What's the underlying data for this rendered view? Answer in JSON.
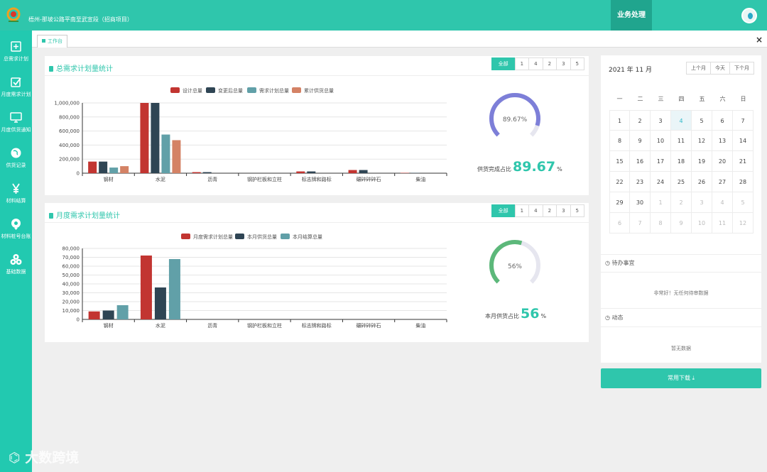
{
  "header": {
    "project": "梧州-那坡公路平南至武宣段（招商项目）",
    "business": "业务处理"
  },
  "sidebar": {
    "items": [
      {
        "label": "总需求计划",
        "icon": "plus-square-icon"
      },
      {
        "label": "月度需求计划",
        "icon": "checkbox-icon"
      },
      {
        "label": "月度供货通知",
        "icon": "monitor-icon"
      },
      {
        "label": "供货记录",
        "icon": "globe-icon"
      },
      {
        "label": "材料结算",
        "icon": "yen-icon"
      },
      {
        "label": "材料桩号台账",
        "icon": "map-pin-icon"
      },
      {
        "label": "基础数据",
        "icon": "cubes-icon"
      }
    ]
  },
  "tabs": {
    "workbench": "工作台",
    "close": "×"
  },
  "panel1": {
    "title": "总需求计划量统计",
    "filters": [
      "全部",
      "1",
      "4",
      "2",
      "3",
      "5"
    ],
    "gauge": {
      "percent": 89.67,
      "center": "89.67%",
      "label": "供货完成占比",
      "value": "89.67",
      "unit": "%"
    }
  },
  "panel2": {
    "title": "月度需求计划量统计",
    "filters": [
      "全部",
      "1",
      "4",
      "2",
      "3",
      "5"
    ],
    "gauge": {
      "percent": 56,
      "center": "56%",
      "label": "本月供货占比",
      "value": "56",
      "unit": "%"
    }
  },
  "colors": {
    "accent": "#2fc6ac",
    "red": "#c23531",
    "navy": "#2f4554",
    "teal": "#61a0a8",
    "orange": "#d48265",
    "gauge1": "#7d7fd8",
    "gauge2": "#5cb87a"
  },
  "chart_data": [
    {
      "type": "bar",
      "title": "总需求计划量统计",
      "categories": [
        "钢材",
        "水泥",
        "沥青",
        "钢护栏板和立柱",
        "标志牌和路标",
        "碾碎碎碎石",
        "柴油"
      ],
      "series": [
        {
          "name": "设计总量",
          "color": "#c23531",
          "values": [
            165000,
            1000000,
            15000,
            0,
            25000,
            45000,
            5000
          ]
        },
        {
          "name": "变更后总量",
          "color": "#2f4554",
          "values": [
            165000,
            1000000,
            15000,
            0,
            25000,
            45000,
            5000
          ]
        },
        {
          "name": "需求计划总量",
          "color": "#61a0a8",
          "values": [
            80000,
            550000,
            0,
            0,
            0,
            0,
            0
          ]
        },
        {
          "name": "累计供货总量",
          "color": "#d48265",
          "values": [
            100000,
            470000,
            0,
            0,
            0,
            0,
            0
          ]
        }
      ],
      "yticks": [
        "0",
        "200,000",
        "400,000",
        "600,000",
        "800,000",
        "1,000,000"
      ],
      "ylim": [
        0,
        1000000
      ]
    },
    {
      "type": "bar",
      "title": "月度需求计划量统计",
      "categories": [
        "钢材",
        "水泥",
        "沥青",
        "钢护栏板和立柱",
        "标志牌和路标",
        "碾碎碎碎石",
        "柴油"
      ],
      "series": [
        {
          "name": "月度需求计划总量",
          "color": "#c23531",
          "values": [
            9000,
            72000,
            0,
            0,
            0,
            0,
            0
          ]
        },
        {
          "name": "本月供货总量",
          "color": "#2f4554",
          "values": [
            10000,
            36000,
            0,
            0,
            0,
            0,
            0
          ]
        },
        {
          "name": "本月结算总量",
          "color": "#61a0a8",
          "values": [
            16000,
            68000,
            0,
            0,
            0,
            0,
            0
          ]
        }
      ],
      "yticks": [
        "0",
        "10,000",
        "20,000",
        "30,000",
        "40,000",
        "50,000",
        "60,000",
        "70,000",
        "80,000"
      ],
      "ylim": [
        0,
        80000
      ]
    }
  ],
  "calendar": {
    "title": "2021 年 11 月",
    "buttons": [
      "上个月",
      "今天",
      "下个月"
    ],
    "weekdays": [
      "一",
      "二",
      "三",
      "四",
      "五",
      "六",
      "日"
    ],
    "rows": [
      [
        {
          "d": "1"
        },
        {
          "d": "2"
        },
        {
          "d": "3"
        },
        {
          "d": "4",
          "t": 1
        },
        {
          "d": "5"
        },
        {
          "d": "6"
        },
        {
          "d": "7"
        }
      ],
      [
        {
          "d": "8"
        },
        {
          "d": "9"
        },
        {
          "d": "10"
        },
        {
          "d": "11"
        },
        {
          "d": "12"
        },
        {
          "d": "13"
        },
        {
          "d": "14"
        }
      ],
      [
        {
          "d": "15"
        },
        {
          "d": "16"
        },
        {
          "d": "17"
        },
        {
          "d": "18"
        },
        {
          "d": "19"
        },
        {
          "d": "20"
        },
        {
          "d": "21"
        }
      ],
      [
        {
          "d": "22"
        },
        {
          "d": "23"
        },
        {
          "d": "24"
        },
        {
          "d": "25"
        },
        {
          "d": "26"
        },
        {
          "d": "27"
        },
        {
          "d": "28"
        }
      ],
      [
        {
          "d": "29"
        },
        {
          "d": "30"
        },
        {
          "d": "1",
          "m": 1
        },
        {
          "d": "2",
          "m": 1
        },
        {
          "d": "3",
          "m": 1
        },
        {
          "d": "4",
          "m": 1
        },
        {
          "d": "5",
          "m": 1
        }
      ],
      [
        {
          "d": "6",
          "m": 1
        },
        {
          "d": "7",
          "m": 1
        },
        {
          "d": "8",
          "m": 1
        },
        {
          "d": "9",
          "m": 1
        },
        {
          "d": "10",
          "m": 1
        },
        {
          "d": "11",
          "m": 1
        },
        {
          "d": "12",
          "m": 1
        }
      ]
    ]
  },
  "todo": {
    "title": "待办事宜",
    "empty": "非常好！无任何待审数据"
  },
  "activity": {
    "title": "动态",
    "empty": "暂无数据"
  },
  "download": {
    "label": "常用下载 ⤓"
  },
  "watermark": "大数跨境"
}
